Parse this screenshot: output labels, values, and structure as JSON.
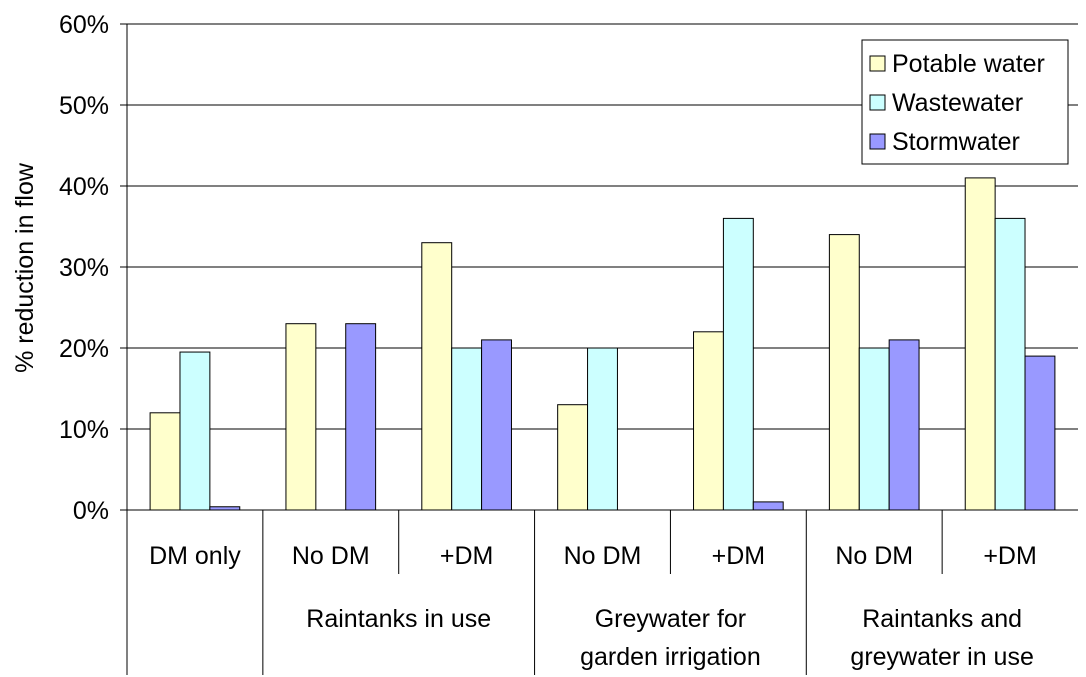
{
  "chart_data": {
    "type": "bar",
    "title": "",
    "xlabel": "",
    "ylabel": "% reduction in flow",
    "ylim": [
      0,
      60
    ],
    "y_ticks": [
      "0%",
      "10%",
      "20%",
      "30%",
      "40%",
      "50%",
      "60%"
    ],
    "y_tick_values": [
      0,
      10,
      20,
      30,
      40,
      50,
      60
    ],
    "grid": true,
    "legend_position": "top-right",
    "categories": [
      "DM only",
      "No DM",
      "+DM",
      "No DM",
      "+DM",
      "No DM",
      "+DM"
    ],
    "groups": [
      {
        "label": [
          "Raintanks in use"
        ],
        "span": [
          1,
          2
        ]
      },
      {
        "label": [
          "Greywater for",
          "garden irrigation"
        ],
        "span": [
          3,
          4
        ]
      },
      {
        "label": [
          "Raintanks and",
          "greywater in use"
        ],
        "span": [
          5,
          6
        ]
      }
    ],
    "series": [
      {
        "name": "Potable water",
        "color": "#FFFFCC",
        "values": [
          12,
          23,
          33,
          13,
          22,
          34,
          41
        ]
      },
      {
        "name": "Wastewater",
        "color": "#CCFFFF",
        "values": [
          19.5,
          0,
          20,
          20,
          36,
          20,
          36
        ]
      },
      {
        "name": "Stormwater",
        "color": "#9999FF",
        "values": [
          0.4,
          23,
          21,
          0,
          1,
          21,
          19
        ]
      }
    ]
  }
}
